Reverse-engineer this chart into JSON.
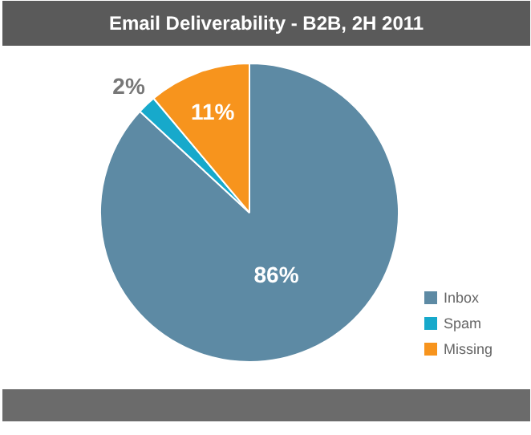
{
  "chart_data": {
    "type": "pie",
    "title": "Email Deliverability - B2B, 2H 2011",
    "categories": [
      "Inbox",
      "Spam",
      "Missing"
    ],
    "values": [
      86,
      2,
      11
    ],
    "colors": [
      "#5d8aa4",
      "#17a9cb",
      "#f7941d"
    ],
    "value_labels": [
      "86%",
      "2%",
      "11%"
    ],
    "legend": "right"
  }
}
